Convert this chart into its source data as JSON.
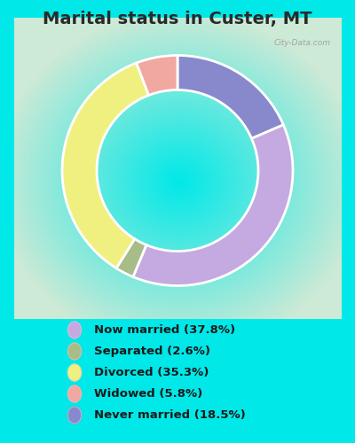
{
  "title": "Marital status in Custer, MT",
  "title_fontsize": 14,
  "title_fontweight": "bold",
  "title_color": "#2a2a2a",
  "background_outer": "#00e8e8",
  "background_inner_color": "#cce8d8",
  "categories": [
    "Now married",
    "Separated",
    "Divorced",
    "Widowed",
    "Never married"
  ],
  "values": [
    37.8,
    2.6,
    35.3,
    5.8,
    18.5
  ],
  "colors": [
    "#c4aae0",
    "#a8bc88",
    "#f0f080",
    "#f0a8a0",
    "#8888cc"
  ],
  "legend_labels": [
    "Now married (37.8%)",
    "Separated (2.6%)",
    "Divorced (35.3%)",
    "Widowed (5.8%)",
    "Never married (18.5%)"
  ],
  "ordered_values": [
    18.5,
    37.8,
    2.6,
    35.3,
    5.8
  ],
  "ordered_colors": [
    "#8888cc",
    "#c4aae0",
    "#a8bc88",
    "#f0f080",
    "#f0a8a0"
  ],
  "donut_width": 0.3,
  "watermark": "City-Data.com"
}
